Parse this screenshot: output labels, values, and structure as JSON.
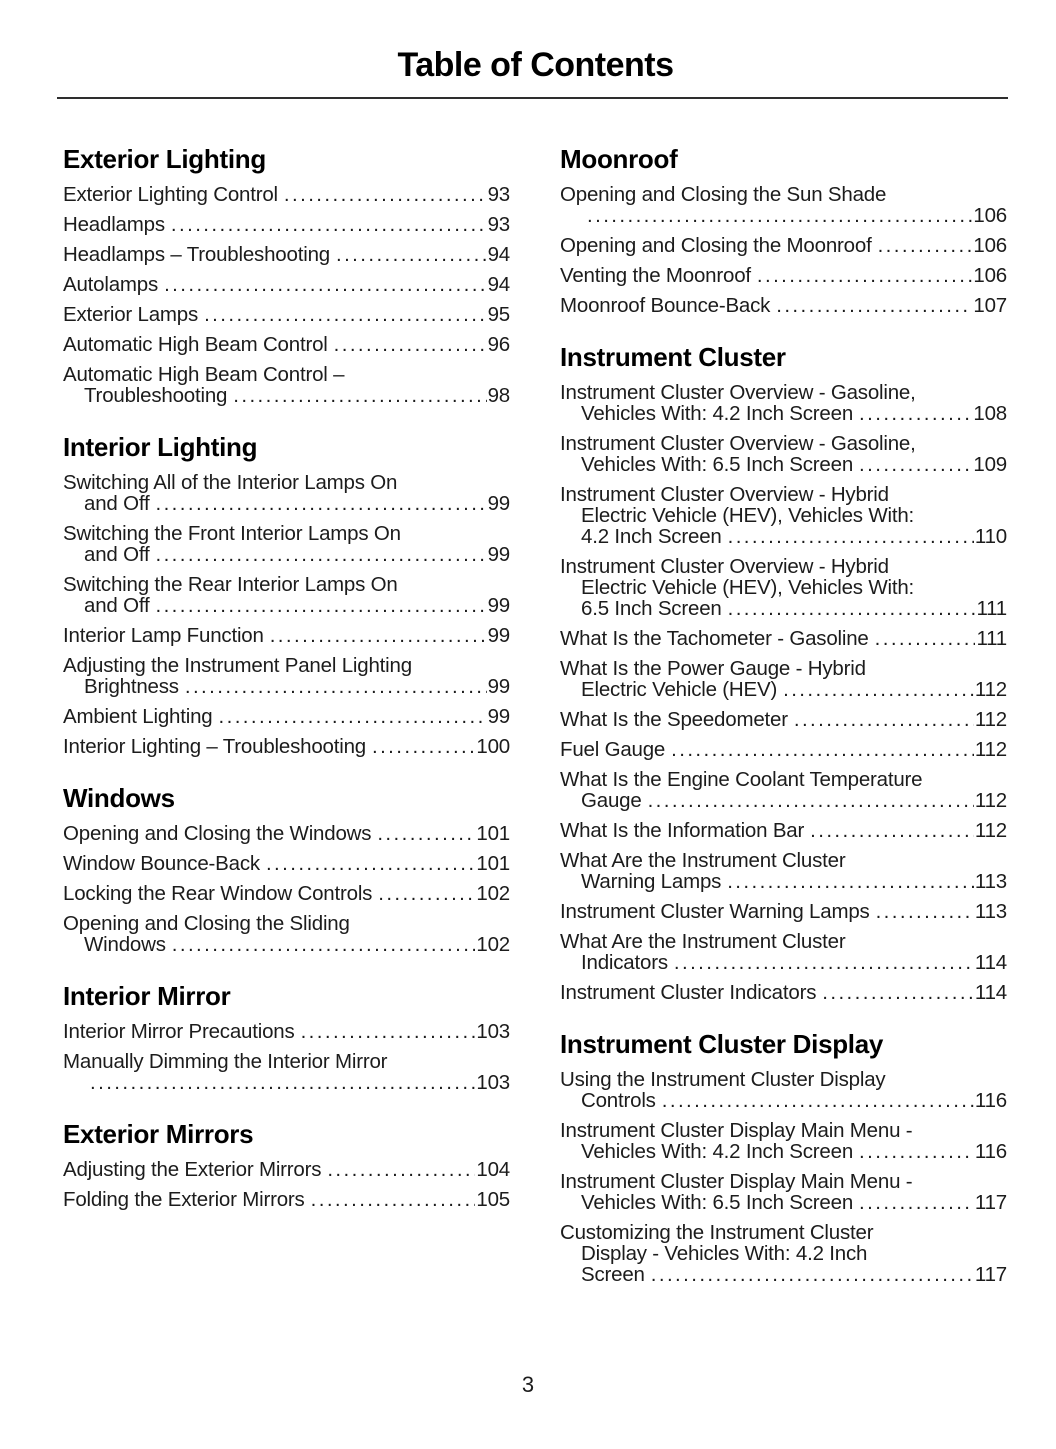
{
  "page": {
    "title": "Table of Contents",
    "page_number": "3"
  },
  "colors": {
    "background": "#ffffff",
    "text": "#1c1c1c",
    "heading": "#000000"
  },
  "columns": [
    {
      "sections": [
        {
          "heading": "Exterior Lighting",
          "entries": [
            {
              "lines": [
                "Exterior Lighting Control"
              ],
              "page": "93"
            },
            {
              "lines": [
                "Headlamps"
              ],
              "page": "93"
            },
            {
              "lines": [
                "Headlamps – Troubleshooting"
              ],
              "page": "94"
            },
            {
              "lines": [
                "Autolamps"
              ],
              "page": "94"
            },
            {
              "lines": [
                "Exterior Lamps"
              ],
              "page": "95"
            },
            {
              "lines": [
                "Automatic High Beam Control"
              ],
              "page": "96"
            },
            {
              "lines": [
                "Automatic High Beam Control –",
                "Troubleshooting"
              ],
              "page": "98"
            }
          ]
        },
        {
          "heading": "Interior Lighting",
          "entries": [
            {
              "lines": [
                "Switching All of the Interior Lamps On",
                "and Off"
              ],
              "page": "99"
            },
            {
              "lines": [
                "Switching the Front Interior Lamps On",
                "and Off"
              ],
              "page": "99"
            },
            {
              "lines": [
                "Switching the Rear Interior Lamps On",
                "and Off"
              ],
              "page": "99"
            },
            {
              "lines": [
                "Interior Lamp Function"
              ],
              "page": "99"
            },
            {
              "lines": [
                "Adjusting the Instrument Panel Lighting",
                "Brightness"
              ],
              "page": "99"
            },
            {
              "lines": [
                "Ambient Lighting"
              ],
              "page": "99"
            },
            {
              "lines": [
                "Interior Lighting – Troubleshooting"
              ],
              "page": "100"
            }
          ]
        },
        {
          "heading": "Windows",
          "entries": [
            {
              "lines": [
                "Opening and Closing the Windows"
              ],
              "page": "101"
            },
            {
              "lines": [
                "Window Bounce-Back"
              ],
              "page": "101"
            },
            {
              "lines": [
                "Locking the Rear Window Controls"
              ],
              "page": "102"
            },
            {
              "lines": [
                "Opening and Closing the Sliding",
                "Windows"
              ],
              "page": "102"
            }
          ]
        },
        {
          "heading": "Interior Mirror",
          "entries": [
            {
              "lines": [
                "Interior Mirror Precautions"
              ],
              "page": "103"
            },
            {
              "lines": [
                "Manually Dimming the Interior Mirror",
                ""
              ],
              "page": "103"
            }
          ]
        },
        {
          "heading": "Exterior Mirrors",
          "entries": [
            {
              "lines": [
                "Adjusting the Exterior Mirrors"
              ],
              "page": "104"
            },
            {
              "lines": [
                "Folding the Exterior Mirrors"
              ],
              "page": "105"
            }
          ]
        }
      ]
    },
    {
      "sections": [
        {
          "heading": "Moonroof",
          "entries": [
            {
              "lines": [
                "Opening and Closing the Sun Shade",
                ""
              ],
              "page": "106"
            },
            {
              "lines": [
                "Opening and Closing the Moonroof"
              ],
              "page": "106"
            },
            {
              "lines": [
                "Venting the Moonroof"
              ],
              "page": "106"
            },
            {
              "lines": [
                "Moonroof Bounce-Back"
              ],
              "page": "107"
            }
          ]
        },
        {
          "heading": "Instrument Cluster",
          "entries": [
            {
              "lines": [
                "Instrument Cluster Overview - Gasoline,",
                "Vehicles With: 4.2 Inch Screen"
              ],
              "page": "108"
            },
            {
              "lines": [
                "Instrument Cluster Overview - Gasoline,",
                "Vehicles With: 6.5 Inch Screen"
              ],
              "page": "109"
            },
            {
              "lines": [
                "Instrument Cluster Overview - Hybrid",
                "Electric Vehicle (HEV), Vehicles With:",
                "4.2 Inch Screen"
              ],
              "page": "110"
            },
            {
              "lines": [
                "Instrument Cluster Overview - Hybrid",
                "Electric Vehicle (HEV), Vehicles With:",
                "6.5 Inch Screen"
              ],
              "page": "111"
            },
            {
              "lines": [
                "What Is the Tachometer - Gasoline"
              ],
              "page": "111"
            },
            {
              "lines": [
                "What Is the Power Gauge - Hybrid",
                "Electric Vehicle (HEV)"
              ],
              "page": "112"
            },
            {
              "lines": [
                "What Is the Speedometer"
              ],
              "page": "112"
            },
            {
              "lines": [
                "Fuel Gauge"
              ],
              "page": "112"
            },
            {
              "lines": [
                "What Is the Engine Coolant Temperature",
                "Gauge"
              ],
              "page": "112"
            },
            {
              "lines": [
                "What Is the Information Bar"
              ],
              "page": "112"
            },
            {
              "lines": [
                "What Are the Instrument Cluster",
                "Warning Lamps"
              ],
              "page": "113"
            },
            {
              "lines": [
                "Instrument Cluster Warning Lamps"
              ],
              "page": "113"
            },
            {
              "lines": [
                "What Are the Instrument Cluster",
                "Indicators"
              ],
              "page": "114"
            },
            {
              "lines": [
                "Instrument Cluster Indicators"
              ],
              "page": "114"
            }
          ]
        },
        {
          "heading": "Instrument Cluster Display",
          "entries": [
            {
              "lines": [
                "Using the Instrument Cluster Display",
                "Controls"
              ],
              "page": "116"
            },
            {
              "lines": [
                "Instrument Cluster Display Main Menu -",
                "Vehicles With: 4.2 Inch Screen"
              ],
              "page": "116"
            },
            {
              "lines": [
                "Instrument Cluster Display Main Menu -",
                "Vehicles With: 6.5 Inch Screen"
              ],
              "page": "117"
            },
            {
              "lines": [
                "Customizing the Instrument Cluster",
                "Display - Vehicles With: 4.2 Inch",
                "Screen"
              ],
              "page": "117"
            }
          ]
        }
      ]
    }
  ]
}
